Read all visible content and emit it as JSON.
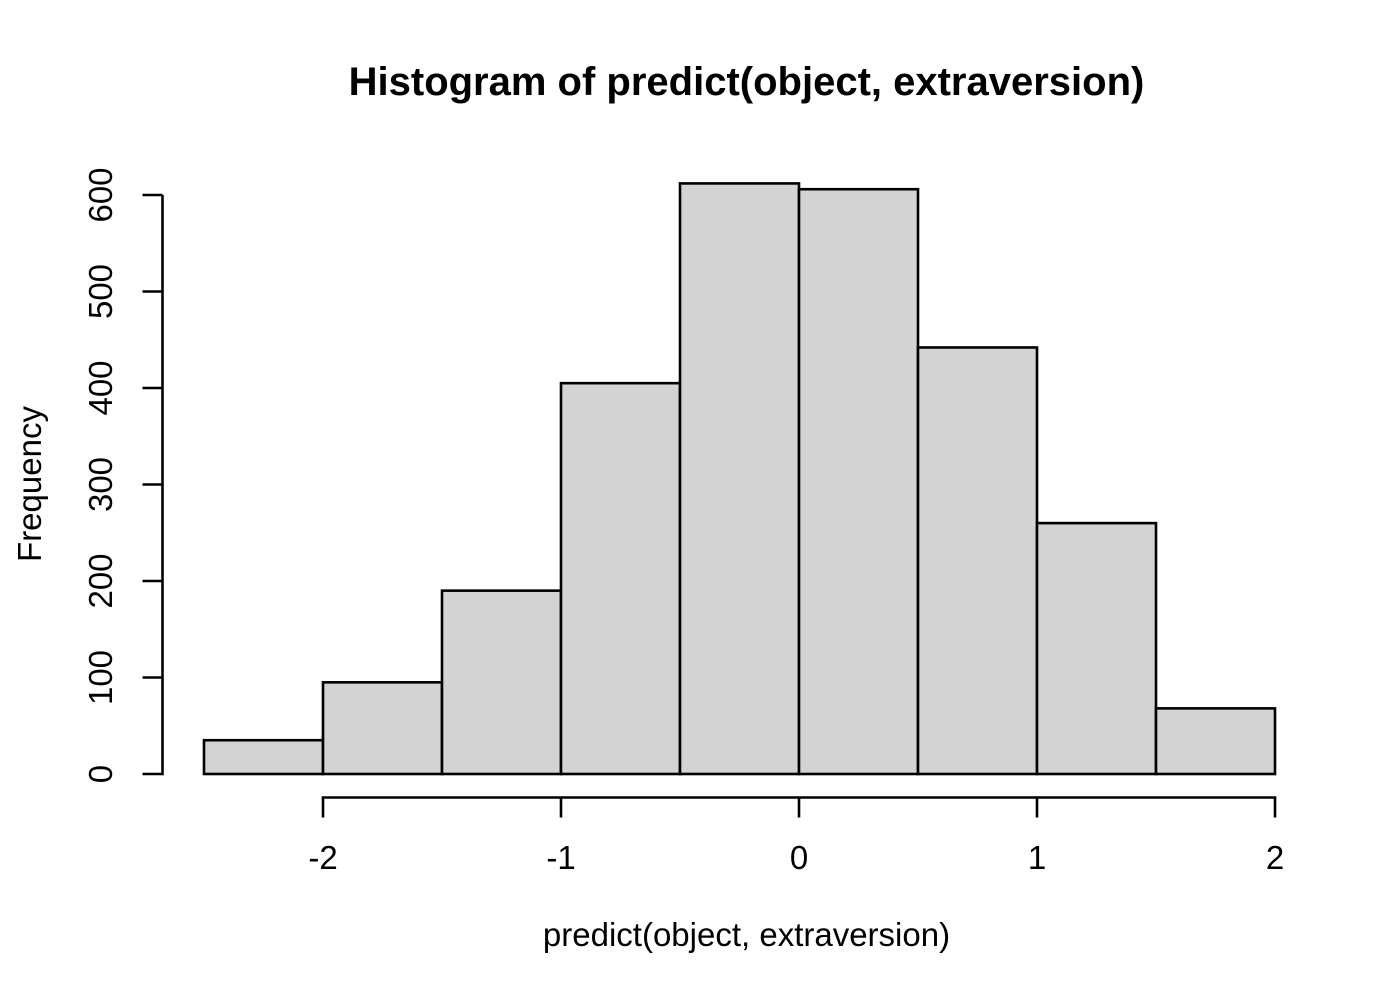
{
  "chart_data": {
    "type": "bar",
    "subtype": "histogram",
    "title": "Histogram of predict(object, extraversion)",
    "xlabel": "predict(object, extraversion)",
    "ylabel": "Frequency",
    "bin_edges": [
      -2.5,
      -2.0,
      -1.5,
      -1.0,
      -0.5,
      0.0,
      0.5,
      1.0,
      1.5,
      2.0
    ],
    "frequencies": [
      35,
      95,
      190,
      405,
      612,
      606,
      442,
      260,
      68
    ],
    "x_ticks": [
      -2,
      -1,
      0,
      1,
      2
    ],
    "x_tick_labels": [
      "-2",
      "-1",
      "0",
      "1",
      "2"
    ],
    "y_ticks": [
      0,
      100,
      200,
      300,
      400,
      500,
      600
    ],
    "y_tick_labels": [
      "0",
      "100",
      "200",
      "300",
      "400",
      "500",
      "600"
    ],
    "xlim": [
      -2.5,
      2.0
    ],
    "ylim": [
      0,
      600
    ],
    "grid": false,
    "legend_position": "none",
    "colors": {
      "bar_fill": "#d3d3d3",
      "bar_border": "#000000",
      "axis": "#000000",
      "text": "#000000",
      "background": "#ffffff"
    }
  }
}
